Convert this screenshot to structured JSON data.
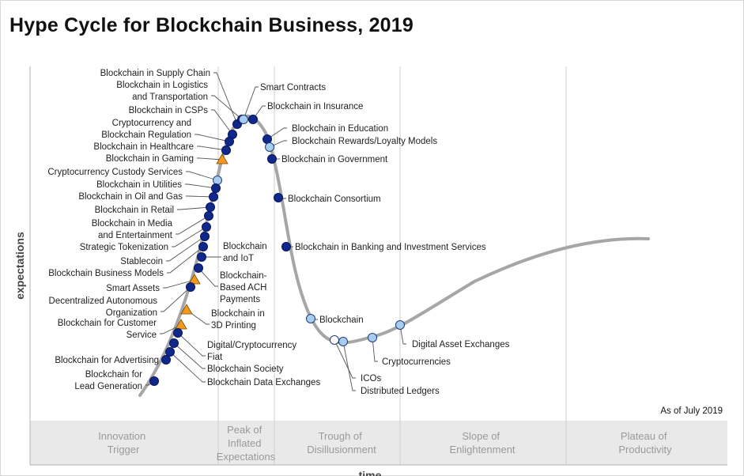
{
  "title": "Hype Cycle for Blockchain Business, 2019",
  "chart_data": {
    "type": "scatter",
    "title": "Hype Cycle for Blockchain Business, 2019",
    "xlabel": "time",
    "ylabel": "expectations",
    "note": "As of July 2019",
    "curve_color": "#a6a6a6",
    "phases": [
      "Innovation Trigger",
      "Peak of Inflated Expectations",
      "Trough of Disillusionment",
      "Slope of Enlightenment",
      "Plateau of Productivity"
    ],
    "legend_markers": {
      "dark_circle": "#10288a",
      "light_circle": "#a9cdf0",
      "white_circle": "#ffffff",
      "triangle": "#f39a1e"
    },
    "technologies": [
      {
        "name": "Blockchain in Supply Chain",
        "marker": "dark_circle"
      },
      {
        "name": "Blockchain in Logistics and Transportation",
        "marker": "dark_circle"
      },
      {
        "name": "Blockchain in CSPs",
        "marker": "dark_circle"
      },
      {
        "name": "Cryptocurrency and Blockchain Regulation",
        "marker": "dark_circle"
      },
      {
        "name": "Blockchain in Healthcare",
        "marker": "dark_circle"
      },
      {
        "name": "Blockchain in Gaming",
        "marker": "triangle"
      },
      {
        "name": "Cryptocurrency Custody Services",
        "marker": "light_circle"
      },
      {
        "name": "Blockchain in Utilities",
        "marker": "dark_circle"
      },
      {
        "name": "Blockchain in Oil and Gas",
        "marker": "dark_circle"
      },
      {
        "name": "Blockchain in Retail",
        "marker": "dark_circle"
      },
      {
        "name": "Blockchain in Media and Entertainment",
        "marker": "dark_circle"
      },
      {
        "name": "Strategic Tokenization",
        "marker": "dark_circle"
      },
      {
        "name": "Stablecoin",
        "marker": "dark_circle"
      },
      {
        "name": "Blockchain Business Models",
        "marker": "dark_circle"
      },
      {
        "name": "Blockchain and IoT",
        "marker": "dark_circle"
      },
      {
        "name": "Smart Assets",
        "marker": "triangle"
      },
      {
        "name": "Blockchain-Based ACH Payments",
        "marker": "dark_circle"
      },
      {
        "name": "Decentralized Autonomous Organization",
        "marker": "dark_circle"
      },
      {
        "name": "Blockchain in 3D Printing",
        "marker": "triangle"
      },
      {
        "name": "Blockchain for Customer Service",
        "marker": "triangle"
      },
      {
        "name": "Digital/Cryptocurrency Fiat",
        "marker": "dark_circle"
      },
      {
        "name": "Blockchain for Advertising",
        "marker": "dark_circle"
      },
      {
        "name": "Blockchain Society",
        "marker": "dark_circle"
      },
      {
        "name": "Blockchain Data Exchanges",
        "marker": "dark_circle"
      },
      {
        "name": "Blockchain for Lead Generation",
        "marker": "dark_circle"
      },
      {
        "name": "Smart Contracts",
        "marker": "light_circle"
      },
      {
        "name": "Blockchain in Insurance",
        "marker": "dark_circle"
      },
      {
        "name": "Blockchain in Education",
        "marker": "dark_circle"
      },
      {
        "name": "Blockchain Rewards/Loyalty Models",
        "marker": "light_circle"
      },
      {
        "name": "Blockchain in Government",
        "marker": "dark_circle"
      },
      {
        "name": "Blockchain Consortium",
        "marker": "dark_circle"
      },
      {
        "name": "Blockchain in Banking and Investment Services",
        "marker": "dark_circle"
      },
      {
        "name": "Blockchain",
        "marker": "light_circle"
      },
      {
        "name": "ICOs",
        "marker": "white_circle"
      },
      {
        "name": "Distributed Ledgers",
        "marker": "light_circle"
      },
      {
        "name": "Cryptocurrencies",
        "marker": "light_circle"
      },
      {
        "name": "Digital Asset Exchanges",
        "marker": "light_circle"
      }
    ]
  }
}
